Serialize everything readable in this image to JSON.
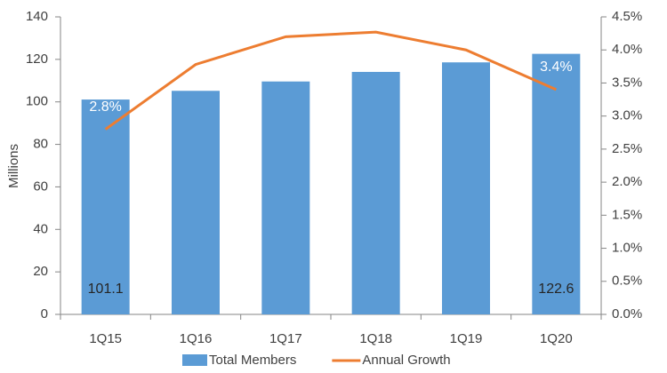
{
  "chart_data": {
    "type": "bar",
    "y_label": "Millions",
    "categories": [
      "1Q15",
      "1Q16",
      "1Q17",
      "1Q18",
      "1Q19",
      "1Q20"
    ],
    "series": [
      {
        "name": "Total Members",
        "type": "bar",
        "color": "#5b9bd5",
        "values": [
          101.1,
          105.2,
          109.6,
          114.1,
          118.6,
          122.6
        ],
        "value_labels": [
          "101.1",
          null,
          null,
          null,
          null,
          "122.6"
        ]
      },
      {
        "name": "Annual Growth",
        "type": "line",
        "axis": "y2",
        "color": "#ed7d31",
        "values": [
          2.8,
          3.78,
          4.2,
          4.27,
          4.0,
          3.4
        ],
        "value_labels": [
          "2.8%",
          null,
          null,
          null,
          null,
          "3.4%"
        ]
      }
    ],
    "ylim": [
      0,
      140
    ],
    "yticks": [
      0,
      20,
      40,
      60,
      80,
      100,
      120,
      140
    ],
    "y2lim": [
      0,
      4.5
    ],
    "y2ticks": [
      {
        "value": 0,
        "label": "0.0%"
      },
      {
        "value": 0.5,
        "label": "0.5%"
      },
      {
        "value": 1,
        "label": "1.0%"
      },
      {
        "value": 1.5,
        "label": "1.5%"
      },
      {
        "value": 2,
        "label": "2.0%"
      },
      {
        "value": 2.5,
        "label": "2.5%"
      },
      {
        "value": 3,
        "label": "3.0%"
      },
      {
        "value": 3.5,
        "label": "3.5%"
      },
      {
        "value": 4,
        "label": "4.0%"
      },
      {
        "value": 4.5,
        "label": "4.5%"
      }
    ],
    "grid": false,
    "legend": "bottom"
  }
}
